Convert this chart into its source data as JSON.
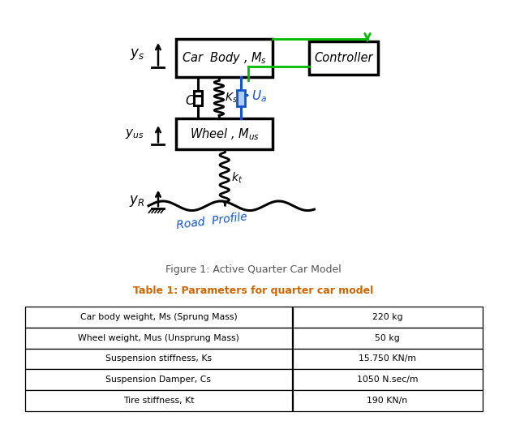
{
  "fig_caption": "Figure 1: Active Quarter Car Model",
  "table_title": "Table 1: Parameters for quarter car model",
  "table_rows": [
    [
      "Car body weight, Ms (Sprung Mass)",
      "220 kg"
    ],
    [
      "Wheel weight, Mus (Unsprung Mass)",
      "50 kg"
    ],
    [
      "Suspension stiffness, Ks",
      "15.750 KN/m"
    ],
    [
      "Suspension Damper, Cs",
      "1050 N.sec/m"
    ],
    [
      "Tire stiffness, Kt",
      "190 KN/n"
    ]
  ],
  "bg_color": "#ffffff",
  "black": "#000000",
  "green": "#00bb00",
  "blue": "#1155cc",
  "table_title_color": "#cc6600",
  "fig_caption_color": "#555555"
}
